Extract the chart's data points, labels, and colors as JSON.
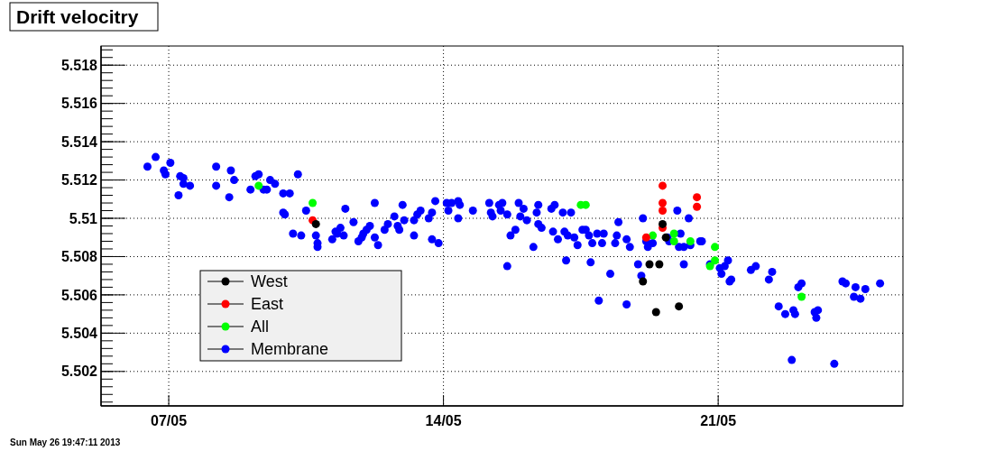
{
  "chart_data": {
    "type": "scatter",
    "title": "Drift velocitry",
    "annotations": [
      "Sun May 26 19:47:11 2013"
    ],
    "xlim": [
      "2013-05-05T06:36",
      "2013-05-25T17:00"
    ],
    "xticks": [
      {
        "value": "2013-05-07",
        "label": "07/05"
      },
      {
        "value": "2013-05-14",
        "label": "14/05"
      },
      {
        "value": "2013-05-21",
        "label": "21/05"
      }
    ],
    "ylim": [
      5.5002,
      5.519
    ],
    "yticks": [
      5.502,
      5.504,
      5.506,
      5.508,
      5.51,
      5.512,
      5.514,
      5.516,
      5.518
    ],
    "grid": true,
    "legend": "bottom left",
    "marker": "circle",
    "series": [
      {
        "name": "West",
        "color": "#000000",
        "x": [
          "2013-05-19T14:00",
          "2013-05-19T06:00",
          "2013-05-19T12:00",
          "2013-05-19T02:00",
          "2013-05-19T10:00",
          "2013-05-20T00:00",
          "2013-05-19T16:00",
          "2013-05-10T18:00"
        ],
        "values": [
          5.5097,
          5.5076,
          5.5076,
          5.5067,
          5.5051,
          5.5054,
          5.509,
          5.5097
        ]
      },
      {
        "name": "East",
        "color": "#ff0000",
        "x": [
          "2013-05-19T14:00",
          "2013-05-19T14:00",
          "2013-05-19T14:00",
          "2013-05-20T11:00",
          "2013-05-20T11:00",
          "2013-05-19T14:00",
          "2013-05-19T04:00",
          "2013-05-10T16:00"
        ],
        "values": [
          5.5117,
          5.5108,
          5.5104,
          5.5111,
          5.5106,
          5.5095,
          5.509,
          5.5099
        ]
      },
      {
        "name": "All",
        "color": "#00ff00",
        "x": [
          "2013-05-09T07:00",
          "2013-05-10T16:00",
          "2013-05-17T12:00",
          "2013-05-17T15:00",
          "2013-05-19T08:00",
          "2013-05-19T21:00",
          "2013-05-19T21:00",
          "2013-05-20T07:00",
          "2013-05-20T22:00",
          "2013-05-20T22:00",
          "2013-05-20T19:00",
          "2013-05-23T03:00"
        ],
        "values": [
          5.5117,
          5.5108,
          5.5107,
          5.5107,
          5.5091,
          5.5092,
          5.5088,
          5.5088,
          5.5085,
          5.5078,
          5.5075,
          5.5059
        ]
      },
      {
        "name": "Membrane",
        "color": "#0000ff",
        "x": [
          "2013-05-06T11:00",
          "2013-05-06T16:00",
          "2013-05-06T21:00",
          "2013-05-06T22:00",
          "2013-05-07T01:00",
          "2013-05-07T06:00",
          "2013-05-07T07:00",
          "2013-05-07T09:00",
          "2013-05-07T09:00",
          "2013-05-07T13:00",
          "2013-05-08T05:00",
          "2013-05-08T05:00",
          "2013-05-08T13:00",
          "2013-05-08T14:00",
          "2013-05-08T16:00",
          "2013-05-09T02:00",
          "2013-05-09T05:00",
          "2013-05-09T07:00",
          "2013-05-09T10:00",
          "2013-05-09T12:00",
          "2013-05-09T14:00",
          "2013-05-09T17:00",
          "2013-05-09T22:00",
          "2013-05-10T02:00",
          "2013-05-10T07:00",
          "2013-05-09T22:00",
          "2013-05-09T23:00",
          "2013-05-10T12:00",
          "2013-05-11T12:00",
          "2013-05-11T17:00",
          "2013-05-10T04:00",
          "2013-05-10T09:00",
          "2013-05-10T18:00",
          "2013-05-10T19:00",
          "2013-05-10T19:00",
          "2013-05-11T04:00",
          "2013-05-11T06:00",
          "2013-05-11T09:00",
          "2013-05-11T11:00",
          "2013-05-11T07:00",
          "2013-05-11T20:00",
          "2013-05-11T22:00",
          "2013-05-11T23:00",
          "2013-05-12T01:00",
          "2013-05-12T06:00",
          "2013-05-12T23:00",
          "2013-05-12T18:00",
          "2013-05-12T03:00",
          "2013-05-12T12:00",
          "2013-05-12T14:00",
          "2013-05-12T20:00",
          "2013-05-12T21:00",
          "2013-05-13T00:00",
          "2013-05-13T06:00",
          "2013-05-13T08:00",
          "2013-05-13T10:00",
          "2013-05-13T06:00",
          "2013-05-13T15:00",
          "2013-05-13T17:00",
          "2013-05-13T19:00",
          "2013-05-13T17:00",
          "2013-05-13T21:00",
          "2013-05-12T06:00",
          "2013-05-12T08:00",
          "2013-05-14T02:00",
          "2013-05-14T03:00",
          "2013-05-14T05:00",
          "2013-05-14T09:00",
          "2013-05-14T10:00",
          "2013-05-14T09:00",
          "2013-05-14T18:00",
          "2013-05-15T04:00",
          "2013-05-15T05:00",
          "2013-05-15T06:00",
          "2013-05-15T10:00",
          "2013-05-15T12:00",
          "2013-05-15T11:00",
          "2013-05-15T15:00",
          "2013-05-15T22:00",
          "2013-05-16T01:00",
          "2013-05-15T23:00",
          "2013-05-16T03:00",
          "2013-05-15T20:00",
          "2013-05-15T17:00",
          "2013-05-16T10:00",
          "2013-05-16T09:00",
          "2013-05-16T10:00",
          "2013-05-16T12:00",
          "2013-05-16T07:00",
          "2013-05-15T15:00",
          "2013-05-16T20:00",
          "2013-05-16T18:00",
          "2013-05-17T01:00",
          "2013-05-17T06:00",
          "2013-05-16T19:00",
          "2013-05-16T22:00",
          "2013-05-17T02:00",
          "2013-05-17T04:00",
          "2013-05-17T08:00",
          "2013-05-17T10:00",
          "2013-05-17T13:00",
          "2013-05-17T15:00",
          "2013-05-17T17:00",
          "2013-05-17T19:00",
          "2013-05-17T22:00",
          "2013-05-18T01:00",
          "2013-05-18T02:00",
          "2013-05-18T09:00",
          "2013-05-18T10:00",
          "2013-05-18T11:00",
          "2013-05-18T16:00",
          "2013-05-18T18:00",
          "2013-05-17T03:00",
          "2013-05-17T18:00",
          "2013-05-18T06:00",
          "2013-05-17T23:00",
          "2013-05-18T16:00",
          "2013-05-19T02:00",
          "2013-05-19T23:00",
          "2013-05-20T06:00",
          "2013-05-19T04:00",
          "2013-05-19T05:00",
          "2013-05-19T08:00",
          "2013-05-19T17:00",
          "2013-05-19T18:00",
          "2013-05-20T01:00",
          "2013-05-20T00:00",
          "2013-05-20T03:00",
          "2013-05-20T07:00",
          "2013-05-20T13:00",
          "2013-05-20T14:00",
          "2013-05-18T23:00",
          "2013-05-19T01:00",
          "2013-05-20T03:00",
          "2013-05-20T19:00",
          "2013-05-21T01:00",
          "2013-05-21T02:00",
          "2013-05-21T04:00",
          "2013-05-21T06:00",
          "2013-05-21T07:00",
          "2013-05-21T08:00",
          "2013-05-21T20:00",
          "2013-05-21T23:00",
          "2013-05-22T07:00",
          "2013-05-22T09:00",
          "2013-05-22T13:00",
          "2013-05-22T17:00",
          "2013-05-22T22:00",
          "2013-05-22T23:00",
          "2013-05-23T01:00",
          "2013-05-23T03:00",
          "2013-05-23T12:00",
          "2013-05-23T11:00",
          "2013-05-23T13:00",
          "2013-05-22T21:00",
          "2013-05-23T23:00",
          "2013-05-24T04:00",
          "2013-05-24T06:00",
          "2013-05-24T12:00",
          "2013-05-24T11:00",
          "2013-05-24T15:00",
          "2013-05-24T18:00",
          "2013-05-25T03:00"
        ],
        "values": [
          5.5127,
          5.5132,
          5.5125,
          5.5123,
          5.5129,
          5.5112,
          5.5122,
          5.5121,
          5.5118,
          5.5117,
          5.5127,
          5.5117,
          5.5111,
          5.5125,
          5.512,
          5.5115,
          5.5122,
          5.5123,
          5.5115,
          5.5115,
          5.512,
          5.5118,
          5.5113,
          5.5113,
          5.5123,
          5.5103,
          5.5102,
          5.5104,
          5.5105,
          5.5098,
          5.5092,
          5.5091,
          5.5091,
          5.5087,
          5.5085,
          5.5089,
          5.5093,
          5.5095,
          5.5091,
          5.5092,
          5.5088,
          5.509,
          5.5092,
          5.5094,
          5.5108,
          5.5107,
          5.5101,
          5.5096,
          5.5094,
          5.5097,
          5.5096,
          5.5094,
          5.5099,
          5.5099,
          5.5102,
          5.5104,
          5.5091,
          5.51,
          5.5103,
          5.5109,
          5.5089,
          5.5087,
          5.509,
          5.5086,
          5.5108,
          5.5104,
          5.5108,
          5.5109,
          5.5107,
          5.51,
          5.5104,
          5.5108,
          5.5103,
          5.5101,
          5.5107,
          5.5108,
          5.5104,
          5.5102,
          5.5108,
          5.5105,
          5.5101,
          5.5099,
          5.5094,
          5.5091,
          5.5107,
          5.5103,
          5.5097,
          5.5095,
          5.5085,
          5.5075,
          5.5107,
          5.5105,
          5.5103,
          5.5103,
          5.5093,
          5.5089,
          5.5093,
          5.5091,
          5.509,
          5.5086,
          5.5094,
          5.5094,
          5.5091,
          5.5087,
          5.5092,
          5.5087,
          5.5092,
          5.5087,
          5.5091,
          5.5098,
          5.5089,
          5.5085,
          5.5078,
          5.5077,
          5.5071,
          5.5057,
          5.5055,
          5.51,
          5.5104,
          5.51,
          5.5088,
          5.5085,
          5.5087,
          5.509,
          5.5088,
          5.5092,
          5.5085,
          5.5085,
          5.5086,
          5.5088,
          5.5088,
          5.5076,
          5.507,
          5.5076,
          5.5076,
          5.5074,
          5.5071,
          5.5075,
          5.5078,
          5.5067,
          5.5068,
          5.5073,
          5.5075,
          5.5068,
          5.5072,
          5.5054,
          5.505,
          5.5052,
          5.505,
          5.5064,
          5.5066,
          5.5048,
          5.5051,
          5.5052,
          5.5026,
          5.5024,
          5.5067,
          5.5066,
          5.5064,
          5.5059,
          5.5058,
          5.5063,
          5.5066
        ]
      }
    ]
  }
}
